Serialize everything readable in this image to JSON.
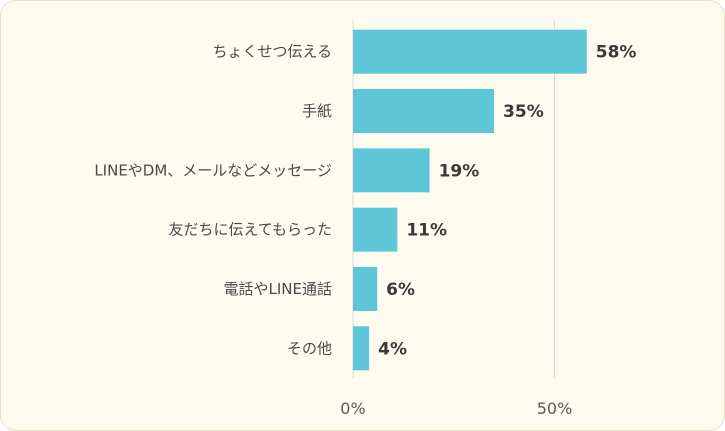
{
  "chart_data": {
    "type": "bar",
    "orientation": "horizontal",
    "categories": [
      "ちょくせつ伝える",
      "手紙",
      "LINEやDM、メールなどメッセージ",
      "友だちに伝えてもらった",
      "電話やLINE通話",
      "その他"
    ],
    "values": [
      58,
      35,
      19,
      11,
      6,
      4
    ],
    "value_labels": [
      "58%",
      "35%",
      "19%",
      "11%",
      "6%",
      "4%"
    ],
    "x_ticks": [
      0,
      50
    ],
    "x_tick_labels": [
      "0%",
      "50%"
    ],
    "xlim": [
      0,
      100
    ],
    "title": "",
    "xlabel": "",
    "ylabel": "",
    "grid": true,
    "colors": {
      "bar": "#5fc5d8",
      "background": "#fdfbee",
      "gridline": "#d9d9d9",
      "border": "#e6e2c9"
    }
  }
}
